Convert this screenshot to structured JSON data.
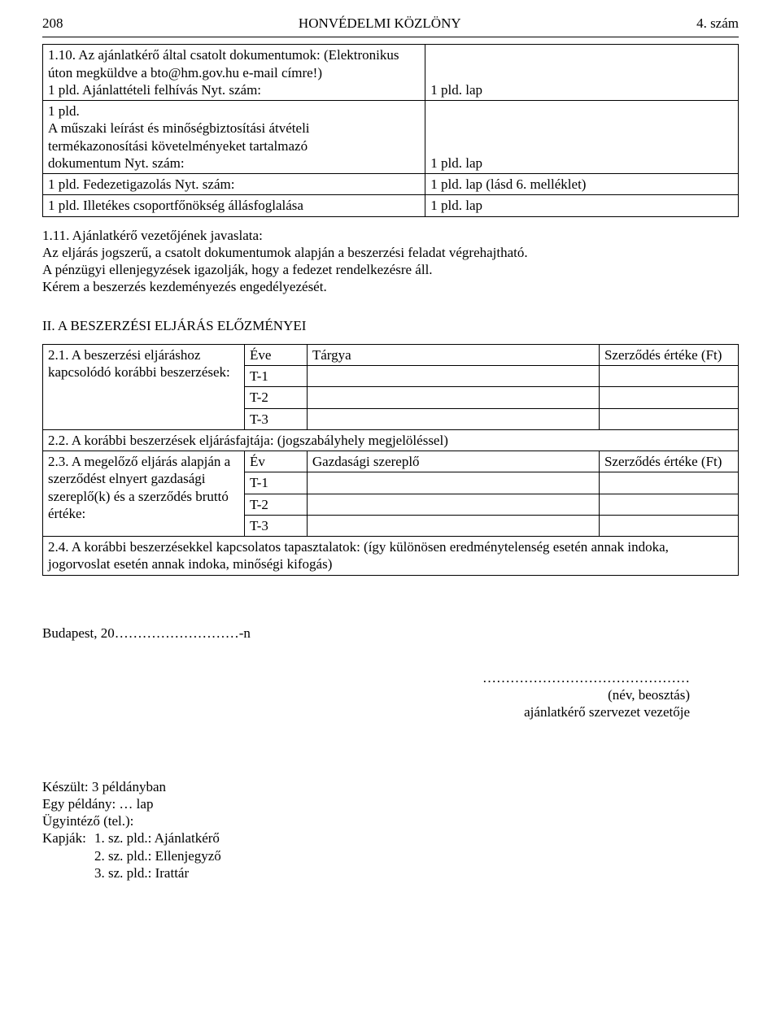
{
  "header": {
    "page_number": "208",
    "journal": "HONVÉDELMI KÖZLÖNY",
    "issue": "4. szám"
  },
  "table1": {
    "row1_left_a": "1.10. Az ajánlatkérő által csatolt dokumentumok: (Elektronikus úton megküldve a bto@hm.gov.hu e-mail címre!)",
    "row1_left_b": "1 pld. Ajánlattételi felhívás Nyt. szám:",
    "row1_right": "1 pld. lap",
    "row2_left": "1 pld.\nA műszaki leírást és minőségbiztosítási átvételi\ntermékazonosítási követelményeket tartalmazó\ndokumentum Nyt. szám:",
    "row2_right": "1 pld. lap",
    "row3_left": "1 pld. Fedezetigazolás Nyt. szám:",
    "row3_right": "1 pld. lap (lásd 6. melléklet)",
    "row4_left": "1 pld. Illetékes csoportfőnökség állásfoglalása",
    "row4_right": "1 pld. lap"
  },
  "para_1_11": "1.11. Ajánlatkérő vezetőjének javaslata:\nAz eljárás jogszerű, a csatolt dokumentumok alapján a beszerzési feladat végrehajtható.\nA pénzügyi ellenjegyzések igazolják, hogy a fedezet rendelkezésre áll.\nKérem a beszerzés kezdeményezés engedélyezését.",
  "section2_title": "II. A BESZERZÉSI ELJÁRÁS ELŐZMÉNYEI",
  "t21": {
    "desc": "2.1. A beszerzési eljáráshoz kapcsolódó korábbi beszerzések:",
    "h_eve": "Éve",
    "h_targy": "Tárgya",
    "h_val": "Szerződés értéke (Ft)",
    "r1": "T-1",
    "r2": "T-2",
    "r3": "T-3"
  },
  "t22_row": "2.2. A korábbi beszerzések eljárásfajtája: (jogszabályhely megjelöléssel)",
  "t23": {
    "desc": "2.3. A megelőző eljárás alapján a szerződést elnyert gazdasági szereplő(k) és a szerződés bruttó értéke:",
    "h_ev": "Év",
    "h_gsz": "Gazdasági szereplő",
    "h_val": "Szerződés értéke (Ft)",
    "r1": "T-1",
    "r2": "T-2",
    "r3": "T-3"
  },
  "t24_row": "2.4. A korábbi beszerzésekkel kapcsolatos tapasztalatok: (így különösen eredménytelenség esetén annak indoka, jogorvoslat esetén annak indoka, minőségi kifogás)",
  "budapest_line": "Budapest, 20………………………-n",
  "sig_dots": "………………………………………",
  "sig_name": "(név, beosztás)",
  "sig_role": "ajánlatkérő szervezet vezetője",
  "footer": {
    "made": "Készült: 3 példányban",
    "one": "Egy példány: … lap",
    "ugy": "Ügyintéző (tel.):",
    "kapjak_label": "Kapják:",
    "k1": "1. sz. pld.: Ajánlatkérő",
    "k2": "2. sz. pld.: Ellenjegyző",
    "k3": "3. sz. pld.: Irattár"
  }
}
